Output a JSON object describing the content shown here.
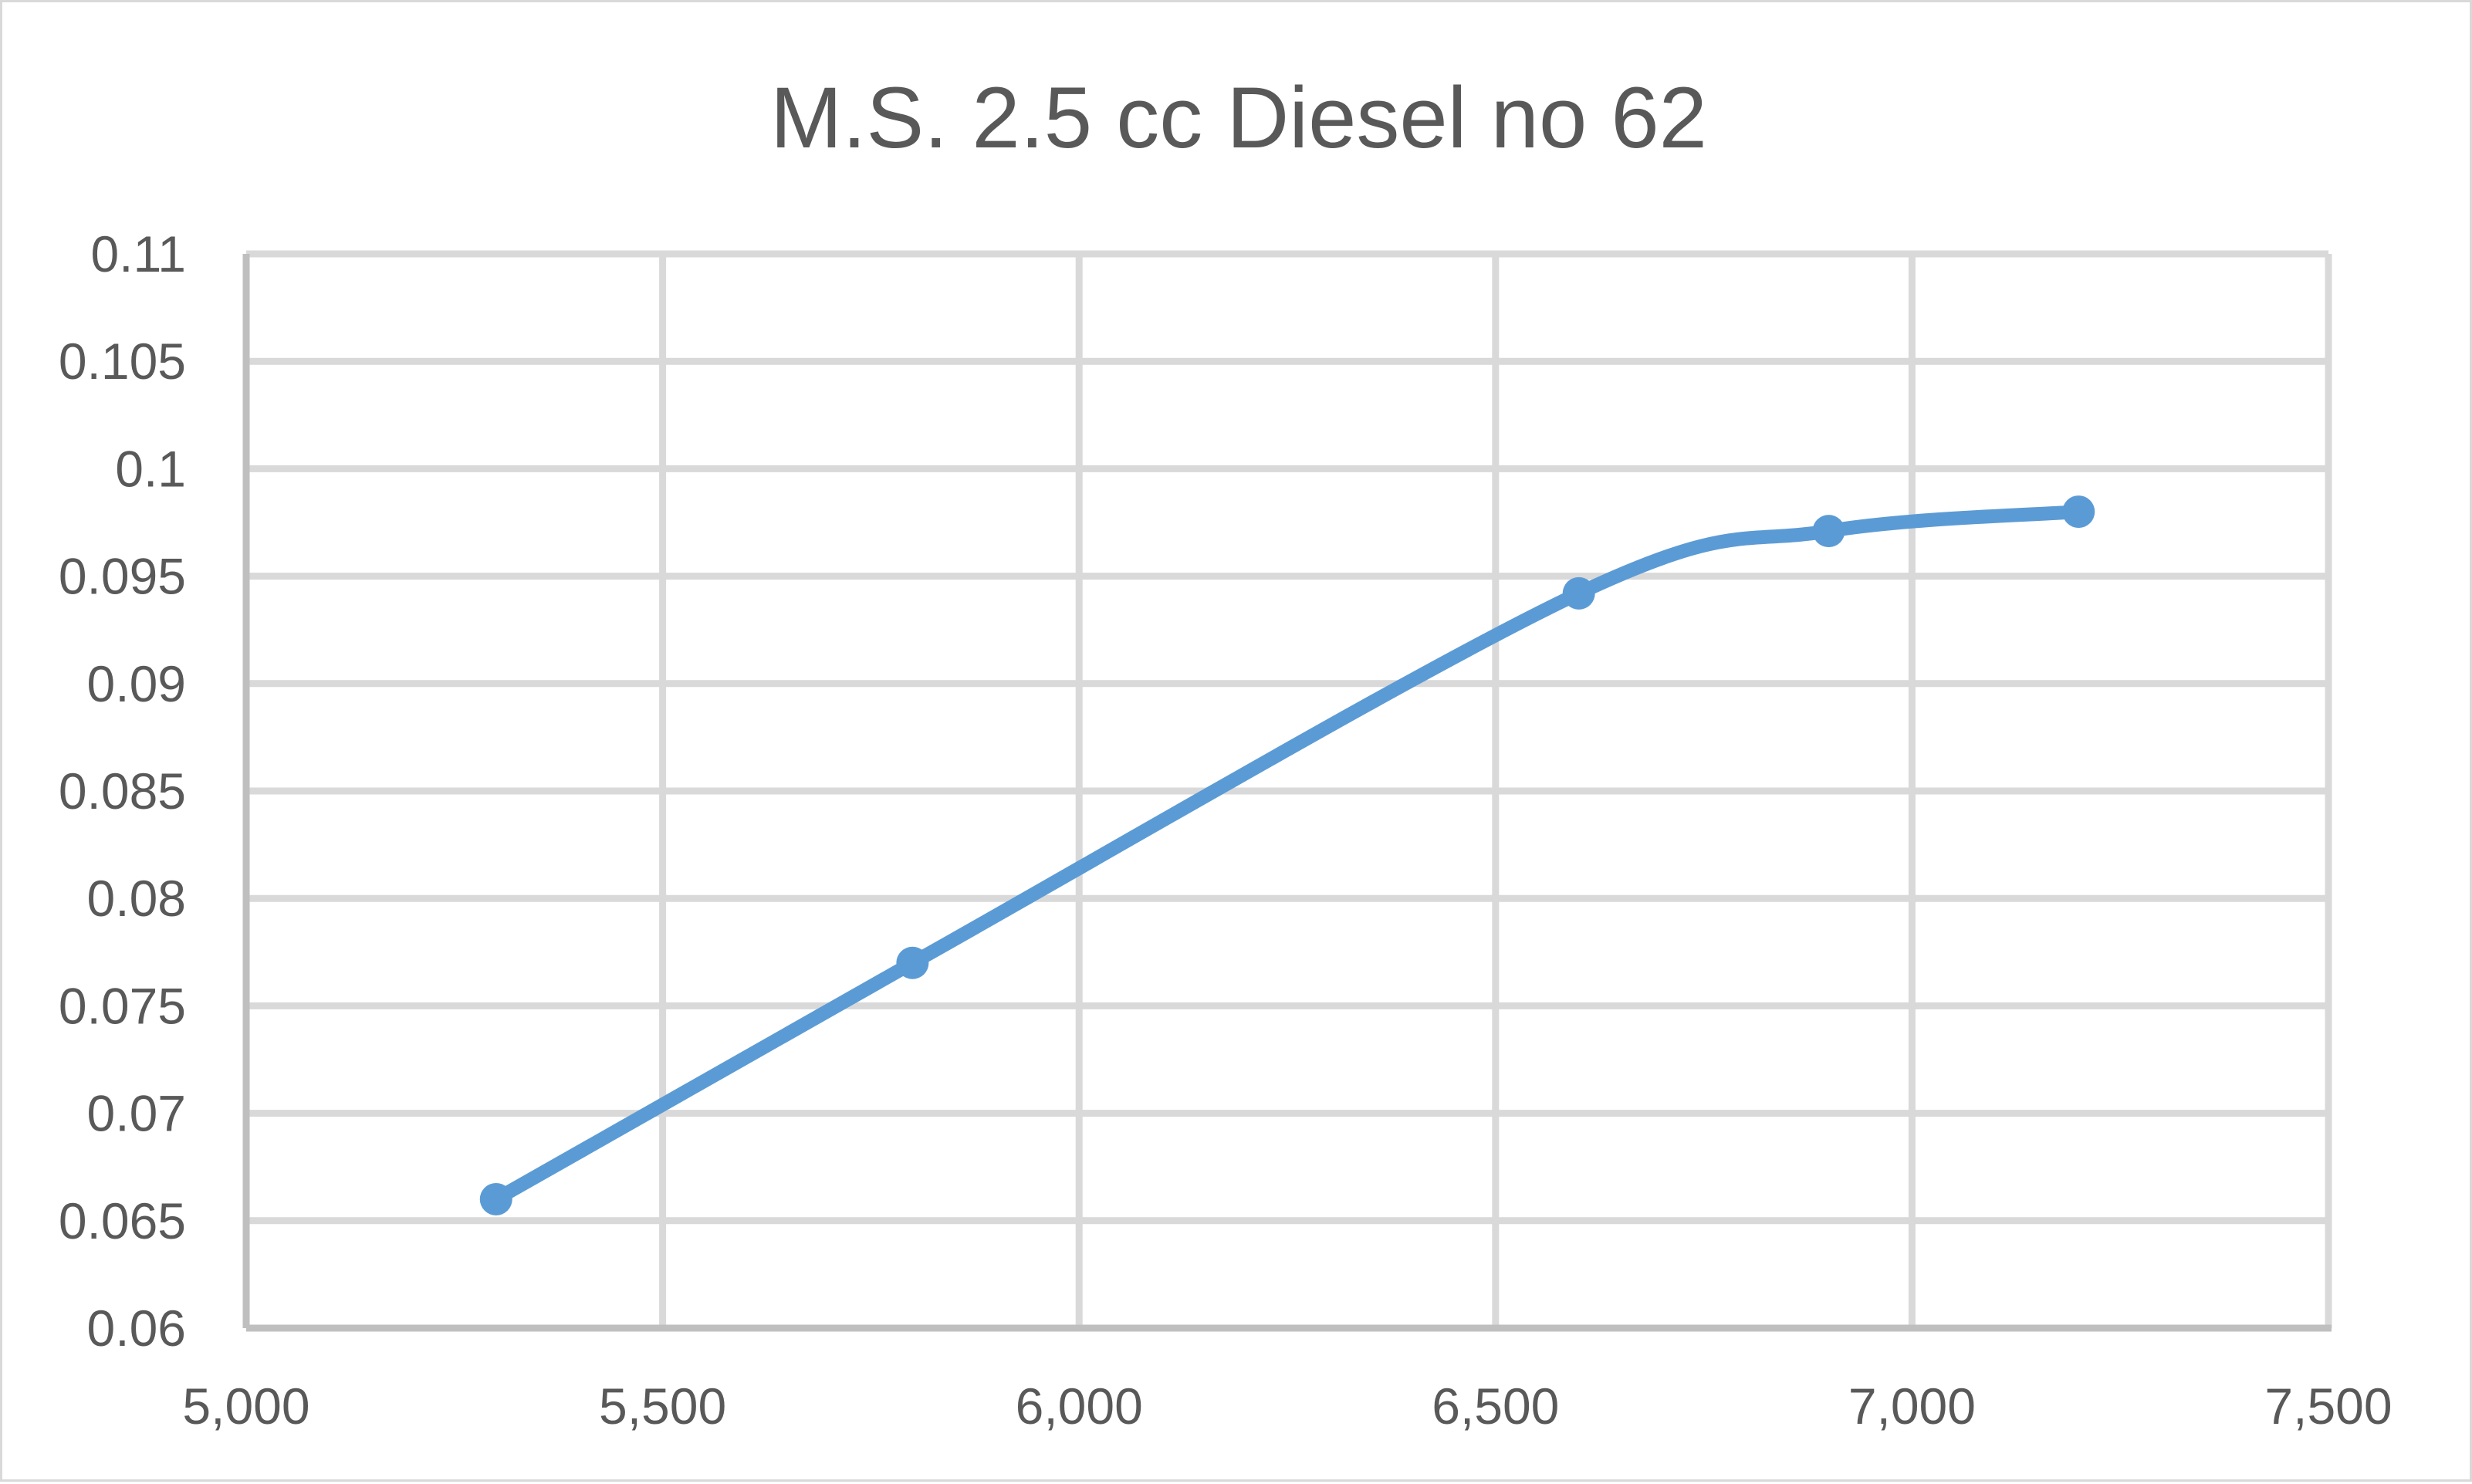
{
  "chart_data": {
    "type": "line",
    "title": "M.S. 2.5 cc Diesel no 62",
    "xlabel": "",
    "ylabel": "",
    "xlim": [
      5000,
      7500
    ],
    "ylim": [
      0.06,
      0.11
    ],
    "x_ticks": [
      "5,000",
      "5,500",
      "6,000",
      "6,500",
      "7,000",
      "7,500"
    ],
    "y_ticks": [
      "0.06",
      "0.065",
      "0.07",
      "0.075",
      "0.08",
      "0.085",
      "0.09",
      "0.095",
      "0.1",
      "0.105",
      "0.11"
    ],
    "grid": true,
    "legend": "none",
    "smoothed": true,
    "series": [
      {
        "color": "#5b9bd5",
        "points": [
          {
            "x": 5300,
            "y": 0.066
          },
          {
            "x": 5800,
            "y": 0.077
          },
          {
            "x": 6600,
            "y": 0.0942
          },
          {
            "x": 6900,
            "y": 0.0971
          },
          {
            "x": 7200,
            "y": 0.098
          }
        ]
      }
    ]
  }
}
